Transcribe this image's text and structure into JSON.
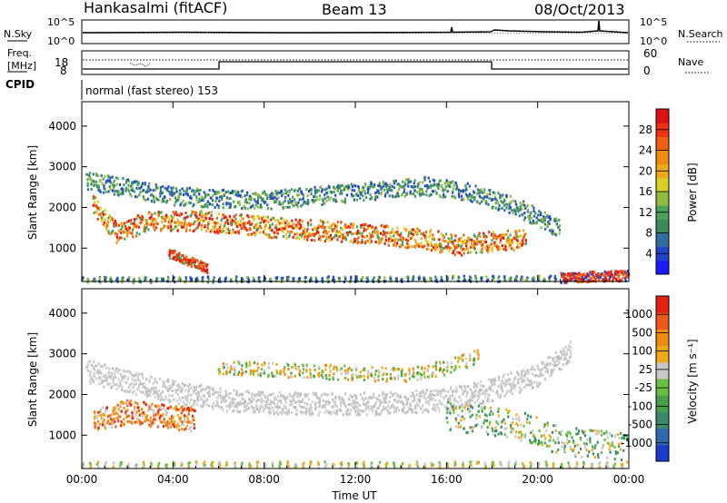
{
  "header": {
    "station": "Hankasalmi (fitACF)",
    "beam": "Beam 13",
    "date": "08/Oct/2013"
  },
  "noise_panel": {
    "left_label": "N.Sky",
    "left_ticks": [
      "10^5",
      "10^0"
    ],
    "right_label": "N.Search",
    "right_ticks": [
      "10^5",
      "10^0"
    ]
  },
  "freq_panel": {
    "left_label_line1": "Freq.",
    "left_label_line2": "[MHz]",
    "left_ticks": [
      "18",
      "8"
    ],
    "right_label": "Nave",
    "right_ticks": [
      "60",
      "0"
    ]
  },
  "cpid_panel": {
    "label": "CPID",
    "value": "normal (fast stereo) 153"
  },
  "chart_data": [
    {
      "type": "heatmap",
      "name": "power",
      "ylabel": "Slant Range [km]",
      "ylim": [
        180,
        4600
      ],
      "yticks": [
        1000,
        2000,
        3000,
        4000
      ],
      "xlim": [
        0,
        24
      ],
      "colorbar": {
        "label": "Power [dB]",
        "ticks": [
          "28",
          "24",
          "20",
          "16",
          "12",
          "8",
          "4"
        ],
        "colors": [
          "#1a1aff",
          "#2244cc",
          "#2e6e9e",
          "#3a8a5a",
          "#4aa35a",
          "#8fbc3f",
          "#d8d020",
          "#f0a818",
          "#f08a10",
          "#f06010",
          "#ee3010",
          "#e01010"
        ]
      }
    },
    {
      "type": "heatmap",
      "name": "velocity",
      "ylabel": "Slant Range [km]",
      "ylim": [
        180,
        4600
      ],
      "yticks": [
        1000,
        2000,
        3000,
        4000
      ],
      "xlim": [
        0,
        24
      ],
      "xticks": [
        "00:00",
        "04:00",
        "08:00",
        "12:00",
        "16:00",
        "20:00",
        "00:00"
      ],
      "xlabel": "Time UT",
      "colorbar": {
        "label": "Velocity [m s⁻¹]",
        "ticks": [
          "1000",
          "500",
          "100",
          "25",
          "-25",
          "-100",
          "-500",
          "-1000"
        ],
        "colors": [
          "#1a3ccc",
          "#2e6ab0",
          "#3a8a6a",
          "#46a048",
          "#68c040",
          "#c8c8c8",
          "#f0a818",
          "#f08a10",
          "#f05818",
          "#e82010"
        ]
      }
    }
  ]
}
